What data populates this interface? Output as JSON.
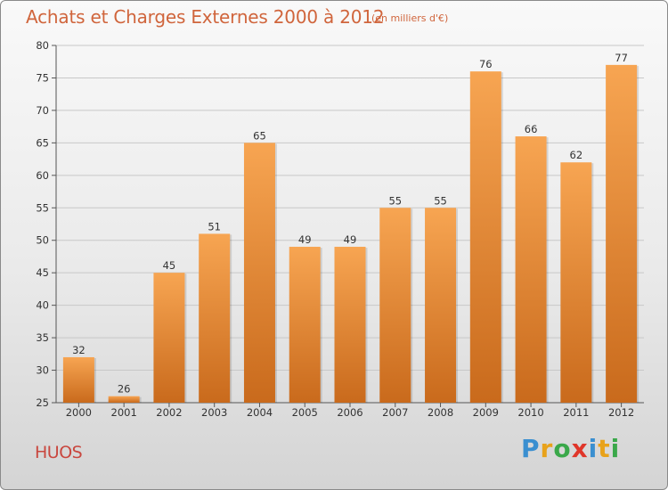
{
  "header": {
    "title": "Achats et Charges Externes 2000 à 2012",
    "subtitle": "(en milliers d'€)"
  },
  "footer": {
    "place": "HUOS",
    "logo": {
      "letters": [
        "P",
        "r",
        "o",
        "x",
        "i",
        "t",
        "i"
      ],
      "colors": [
        "#3a8fd0",
        "#e8a21a",
        "#3aa84a",
        "#e0362a",
        "#3a8fd0",
        "#e8a21a",
        "#3aa84a"
      ]
    }
  },
  "chart_data": {
    "type": "bar",
    "title": "Achats et Charges Externes 2000 à 2012",
    "subtitle": "(en milliers d'€)",
    "categories": [
      "2000",
      "2001",
      "2002",
      "2003",
      "2004",
      "2005",
      "2006",
      "2007",
      "2008",
      "2009",
      "2010",
      "2011",
      "2012"
    ],
    "values": [
      32,
      26,
      45,
      51,
      65,
      49,
      49,
      55,
      55,
      76,
      66,
      62,
      77
    ],
    "ylim": [
      25,
      80
    ],
    "yticks": [
      25,
      30,
      35,
      40,
      45,
      50,
      55,
      60,
      65,
      70,
      75,
      80
    ],
    "grid": true,
    "bar_color_top": "#f7a552",
    "bar_color_bottom": "#c96a1c"
  }
}
